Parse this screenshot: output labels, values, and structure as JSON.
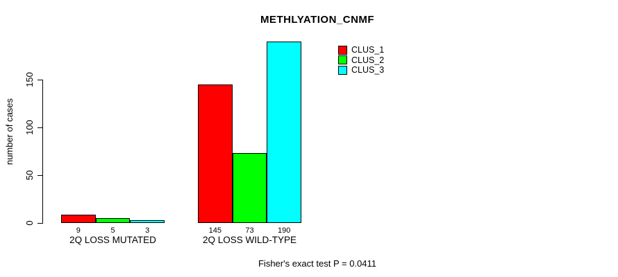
{
  "chart_data": {
    "type": "bar",
    "title": "METHLYATION_CNMF",
    "ylabel": "number of cases",
    "yticks": [
      0,
      50,
      100,
      150
    ],
    "ylim": [
      0,
      190
    ],
    "grid": false,
    "legend_position": "top-right",
    "categories": [
      "2Q LOSS MUTATED",
      "2Q LOSS WILD-TYPE"
    ],
    "series": [
      {
        "name": "CLUS_1",
        "color": "#FF0000",
        "values": [
          9,
          145
        ]
      },
      {
        "name": "CLUS_2",
        "color": "#00FF00",
        "values": [
          5,
          73
        ]
      },
      {
        "name": "CLUS_3",
        "color": "#00FFFF",
        "values": [
          3,
          190
        ]
      }
    ],
    "footer": "Fisher's exact test P = 0.0411"
  }
}
